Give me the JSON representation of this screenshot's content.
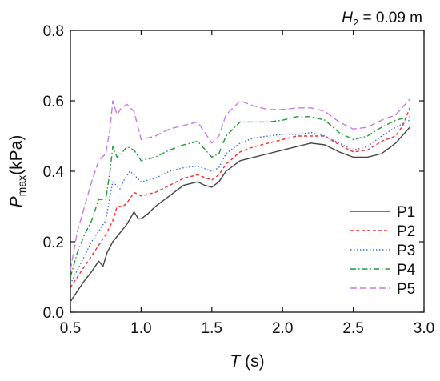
{
  "chart_data": {
    "type": "line",
    "annotation": {
      "symbol": "H",
      "subscript": "2",
      "text": " = 0.09 m"
    },
    "xlabel": {
      "italic": "T",
      "rest": " (s)"
    },
    "ylabel": {
      "italic": "P",
      "subscript": "max",
      "rest": "(kPa)"
    },
    "xlim": [
      0.5,
      3.0
    ],
    "ylim": [
      0.0,
      0.8
    ],
    "xticks": [
      "0.5",
      "1.0",
      "1.5",
      "2.0",
      "2.5",
      "3.0"
    ],
    "yticks": [
      "0.0",
      "0.2",
      "0.4",
      "0.6",
      "0.8"
    ],
    "grid": false,
    "legend_position": "bottom-right",
    "series": [
      {
        "name": "P1",
        "color": "#444444",
        "dash": "solid",
        "points": [
          [
            0.5,
            0.03
          ],
          [
            0.55,
            0.06
          ],
          [
            0.6,
            0.09
          ],
          [
            0.65,
            0.115
          ],
          [
            0.7,
            0.145
          ],
          [
            0.73,
            0.13
          ],
          [
            0.76,
            0.17
          ],
          [
            0.8,
            0.2
          ],
          [
            0.85,
            0.225
          ],
          [
            0.9,
            0.25
          ],
          [
            0.95,
            0.285
          ],
          [
            0.98,
            0.265
          ],
          [
            1.0,
            0.265
          ],
          [
            1.05,
            0.28
          ],
          [
            1.1,
            0.3
          ],
          [
            1.2,
            0.33
          ],
          [
            1.3,
            0.36
          ],
          [
            1.4,
            0.37
          ],
          [
            1.45,
            0.36
          ],
          [
            1.5,
            0.355
          ],
          [
            1.55,
            0.37
          ],
          [
            1.6,
            0.4
          ],
          [
            1.7,
            0.43
          ],
          [
            1.8,
            0.44
          ],
          [
            1.9,
            0.45
          ],
          [
            2.0,
            0.46
          ],
          [
            2.1,
            0.47
          ],
          [
            2.2,
            0.48
          ],
          [
            2.3,
            0.475
          ],
          [
            2.4,
            0.455
          ],
          [
            2.5,
            0.44
          ],
          [
            2.6,
            0.44
          ],
          [
            2.7,
            0.45
          ],
          [
            2.8,
            0.48
          ],
          [
            2.9,
            0.525
          ]
        ]
      },
      {
        "name": "P2",
        "color": "#ee3333",
        "dash": "4 3",
        "points": [
          [
            0.5,
            0.07
          ],
          [
            0.55,
            0.1
          ],
          [
            0.6,
            0.13
          ],
          [
            0.65,
            0.16
          ],
          [
            0.7,
            0.19
          ],
          [
            0.75,
            0.22
          ],
          [
            0.8,
            0.26
          ],
          [
            0.83,
            0.3
          ],
          [
            0.87,
            0.3
          ],
          [
            0.9,
            0.31
          ],
          [
            0.95,
            0.34
          ],
          [
            1.0,
            0.33
          ],
          [
            1.1,
            0.34
          ],
          [
            1.2,
            0.36
          ],
          [
            1.3,
            0.38
          ],
          [
            1.4,
            0.39
          ],
          [
            1.5,
            0.375
          ],
          [
            1.55,
            0.39
          ],
          [
            1.6,
            0.42
          ],
          [
            1.7,
            0.455
          ],
          [
            1.8,
            0.47
          ],
          [
            1.9,
            0.48
          ],
          [
            2.0,
            0.49
          ],
          [
            2.1,
            0.5
          ],
          [
            2.2,
            0.5
          ],
          [
            2.3,
            0.5
          ],
          [
            2.4,
            0.475
          ],
          [
            2.5,
            0.455
          ],
          [
            2.6,
            0.46
          ],
          [
            2.7,
            0.485
          ],
          [
            2.8,
            0.5
          ],
          [
            2.85,
            0.53
          ],
          [
            2.9,
            0.58
          ]
        ]
      },
      {
        "name": "P3",
        "color": "#3f6fe0",
        "dash": "1.5 2.5",
        "points": [
          [
            0.5,
            0.08
          ],
          [
            0.55,
            0.12
          ],
          [
            0.6,
            0.16
          ],
          [
            0.65,
            0.2
          ],
          [
            0.7,
            0.23
          ],
          [
            0.75,
            0.26
          ],
          [
            0.78,
            0.33
          ],
          [
            0.8,
            0.37
          ],
          [
            0.85,
            0.35
          ],
          [
            0.88,
            0.375
          ],
          [
            0.92,
            0.4
          ],
          [
            0.95,
            0.39
          ],
          [
            1.0,
            0.37
          ],
          [
            1.1,
            0.38
          ],
          [
            1.2,
            0.4
          ],
          [
            1.3,
            0.41
          ],
          [
            1.4,
            0.415
          ],
          [
            1.5,
            0.4
          ],
          [
            1.55,
            0.41
          ],
          [
            1.6,
            0.45
          ],
          [
            1.7,
            0.48
          ],
          [
            1.8,
            0.495
          ],
          [
            1.9,
            0.5
          ],
          [
            2.0,
            0.505
          ],
          [
            2.1,
            0.505
          ],
          [
            2.2,
            0.51
          ],
          [
            2.3,
            0.5
          ],
          [
            2.4,
            0.48
          ],
          [
            2.5,
            0.46
          ],
          [
            2.6,
            0.47
          ],
          [
            2.7,
            0.5
          ],
          [
            2.8,
            0.525
          ],
          [
            2.9,
            0.545
          ]
        ]
      },
      {
        "name": "P4",
        "color": "#1f9a3a",
        "dash": "7 3 1.5 3",
        "points": [
          [
            0.5,
            0.1
          ],
          [
            0.55,
            0.17
          ],
          [
            0.6,
            0.22
          ],
          [
            0.65,
            0.26
          ],
          [
            0.7,
            0.32
          ],
          [
            0.75,
            0.32
          ],
          [
            0.78,
            0.4
          ],
          [
            0.8,
            0.47
          ],
          [
            0.83,
            0.44
          ],
          [
            0.86,
            0.45
          ],
          [
            0.9,
            0.47
          ],
          [
            0.95,
            0.46
          ],
          [
            1.0,
            0.43
          ],
          [
            1.1,
            0.44
          ],
          [
            1.2,
            0.46
          ],
          [
            1.3,
            0.475
          ],
          [
            1.4,
            0.485
          ],
          [
            1.5,
            0.44
          ],
          [
            1.55,
            0.45
          ],
          [
            1.6,
            0.5
          ],
          [
            1.7,
            0.54
          ],
          [
            1.8,
            0.54
          ],
          [
            1.9,
            0.54
          ],
          [
            2.0,
            0.545
          ],
          [
            2.1,
            0.555
          ],
          [
            2.2,
            0.555
          ],
          [
            2.3,
            0.545
          ],
          [
            2.4,
            0.51
          ],
          [
            2.5,
            0.49
          ],
          [
            2.6,
            0.5
          ],
          [
            2.7,
            0.525
          ],
          [
            2.8,
            0.545
          ],
          [
            2.9,
            0.555
          ]
        ]
      },
      {
        "name": "P5",
        "color": "#c77be6",
        "dash": "8 4",
        "points": [
          [
            0.5,
            0.12
          ],
          [
            0.55,
            0.23
          ],
          [
            0.6,
            0.3
          ],
          [
            0.65,
            0.37
          ],
          [
            0.7,
            0.43
          ],
          [
            0.75,
            0.45
          ],
          [
            0.78,
            0.52
          ],
          [
            0.8,
            0.6
          ],
          [
            0.83,
            0.56
          ],
          [
            0.86,
            0.58
          ],
          [
            0.9,
            0.59
          ],
          [
            0.95,
            0.57
          ],
          [
            1.0,
            0.49
          ],
          [
            1.1,
            0.5
          ],
          [
            1.2,
            0.52
          ],
          [
            1.3,
            0.53
          ],
          [
            1.4,
            0.54
          ],
          [
            1.5,
            0.48
          ],
          [
            1.55,
            0.5
          ],
          [
            1.6,
            0.56
          ],
          [
            1.7,
            0.6
          ],
          [
            1.8,
            0.585
          ],
          [
            1.9,
            0.575
          ],
          [
            2.0,
            0.575
          ],
          [
            2.1,
            0.58
          ],
          [
            2.2,
            0.58
          ],
          [
            2.3,
            0.57
          ],
          [
            2.4,
            0.54
          ],
          [
            2.5,
            0.52
          ],
          [
            2.6,
            0.525
          ],
          [
            2.7,
            0.545
          ],
          [
            2.8,
            0.56
          ],
          [
            2.9,
            0.605
          ]
        ]
      }
    ]
  }
}
